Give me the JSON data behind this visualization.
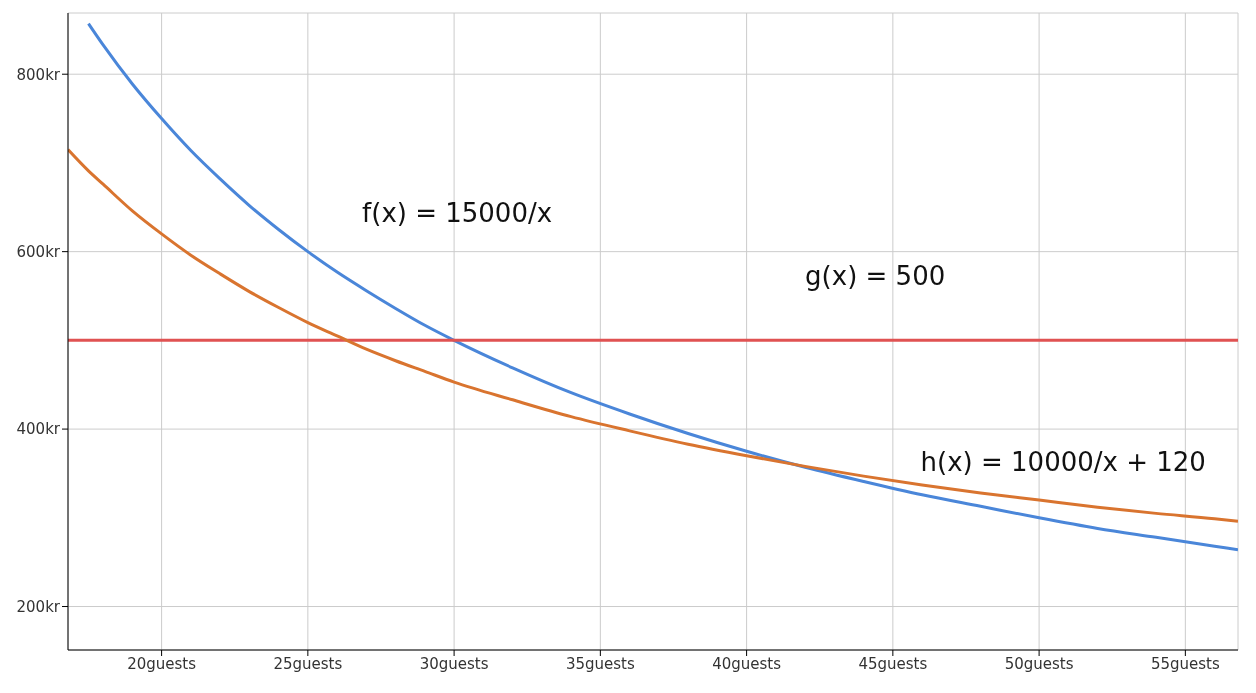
{
  "chart_data": {
    "type": "line",
    "x": [
      16.8,
      17.5,
      18,
      19,
      20,
      21,
      22,
      23,
      24,
      25,
      26,
      27,
      28,
      29,
      30,
      32,
      34,
      36,
      38,
      40,
      42,
      44,
      46,
      48,
      50,
      52,
      54,
      56,
      56.8
    ],
    "series": [
      {
        "name": "f(x) = 15000/x",
        "color": "#4a86d9",
        "values": [
          null,
          857,
          833,
          789,
          750,
          714,
          682,
          652,
          625,
          600,
          577,
          556,
          536,
          517,
          500,
          469,
          441,
          417,
          395,
          375,
          357,
          341,
          326,
          313,
          300,
          288,
          278,
          268,
          264
        ]
      },
      {
        "name": "g(x) = 500",
        "color": "#e05252",
        "x": [
          16.8,
          42,
          56.8
        ],
        "values": [
          500,
          500,
          500
        ]
      },
      {
        "name": "h(x) = 10000/x + 120",
        "color": "#d9742f",
        "values": [
          715,
          691,
          676,
          646,
          620,
          596,
          575,
          555,
          537,
          520,
          505,
          490,
          477,
          465,
          453,
          433,
          414,
          398,
          383,
          370,
          358,
          347,
          337,
          328,
          320,
          312,
          305,
          299,
          296
        ]
      }
    ],
    "xlim": [
      16.8,
      56.8
    ],
    "ylim": [
      151,
      869
    ],
    "xticks": [
      {
        "value": 20,
        "label": "20guests"
      },
      {
        "value": 25,
        "label": "25guests"
      },
      {
        "value": 30,
        "label": "30guests"
      },
      {
        "value": 35,
        "label": "35guests"
      },
      {
        "value": 40,
        "label": "40guests"
      },
      {
        "value": 45,
        "label": "45guests"
      },
      {
        "value": 50,
        "label": "50guests"
      },
      {
        "value": 55,
        "label": "55guests"
      }
    ],
    "yticks": [
      {
        "value": 200,
        "label": "200kr"
      },
      {
        "value": 400,
        "label": "400kr"
      },
      {
        "value": 600,
        "label": "600kr"
      },
      {
        "value": 800,
        "label": "800kr"
      }
    ],
    "grid": true,
    "marker": "none",
    "line_style": "solid"
  }
}
